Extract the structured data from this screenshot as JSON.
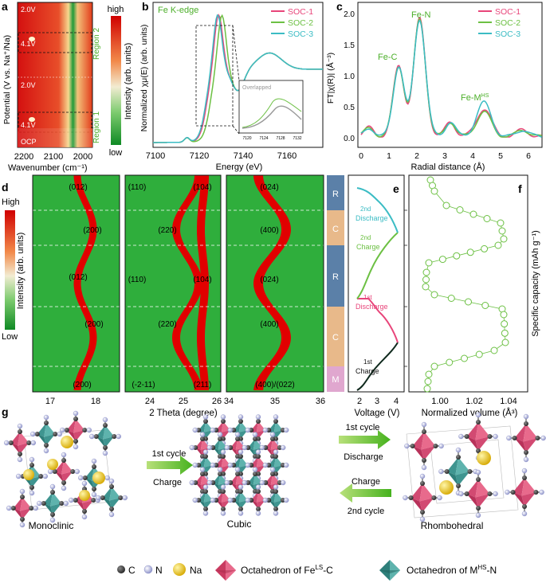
{
  "panel_a": {
    "letter": "a",
    "legend_high": "high",
    "legend_low": "low",
    "legend_title": "Intensity (arb. units)",
    "ylabel": "Potential (V vs. Na⁺/Na)",
    "xlabel": "Wavenumber (cm⁻¹)",
    "xticks": [
      "2200",
      "2100",
      "2000"
    ],
    "labels": [
      "2.0V",
      "4.1V",
      "2.0V",
      "4.1V",
      "OCP"
    ],
    "region2": "Region 2",
    "region1": "Region 1"
  },
  "panel_b": {
    "letter": "b",
    "title": "Fe K-edge",
    "ylabel": "Normalized χμ(E) (arb. units)",
    "xlabel": "Energy (eV)",
    "xticks": [
      "7100",
      "7120",
      "7140",
      "7160"
    ],
    "inset_label": "Overlapped",
    "inset_ticks": [
      "7120",
      "7124",
      "7128",
      "7132"
    ],
    "legend": [
      "SOC-1",
      "SOC-2",
      "SOC-3"
    ]
  },
  "panel_c": {
    "letter": "c",
    "ylabel": "FT|χ(R)| (Å⁻³)",
    "xlabel": "Radial distance (Å)",
    "xticks": [
      "0",
      "1",
      "2",
      "3",
      "4",
      "5",
      "6"
    ],
    "yticks": [
      "0.0",
      "0.5",
      "1.0",
      "1.5",
      "2.0"
    ],
    "peak_fe_c": "Fe-C",
    "peak_fe_n": "Fe-N",
    "peak_fe_m": "Fe-M",
    "peak_fe_m_sup": "HS",
    "legend": [
      "SOC-1",
      "SOC-2",
      "SOC-3"
    ]
  },
  "panel_d": {
    "letter": "d",
    "legend_high": "High",
    "legend_low": "Low",
    "legend_title": "Intensity (arb. units)",
    "xlabel": "2 Theta (degree)",
    "sub1_ticks": [
      "17",
      "18"
    ],
    "sub2_ticks": [
      "24",
      "25",
      "26"
    ],
    "sub3_ticks": [
      "34",
      "35",
      "36"
    ],
    "sub1_labels": [
      "(012)",
      "(200)",
      "(012)",
      "(200)",
      "(200)"
    ],
    "sub2_labels": [
      "(110)",
      "(104)",
      "(220)",
      "(110)",
      "(104)",
      "(220)",
      "(-2-11)",
      "(211)"
    ],
    "sub3_labels": [
      "(024)",
      "(400)",
      "(024)",
      "(400)",
      "(400)/(022)"
    ],
    "phases": [
      "R",
      "C",
      "R",
      "C",
      "M"
    ],
    "colors": {
      "R": "#5b80a8",
      "C": "#e8b98a",
      "M": "#e0a7cf",
      "red": "#e10000",
      "green": "#2fae3c"
    }
  },
  "panel_e": {
    "letter": "e",
    "xlabel": "Voltage (V)",
    "xticks": [
      "2",
      "3",
      "4"
    ],
    "labels": [
      "2nd",
      "Discharge",
      "2nd",
      "Charge",
      "1st",
      "Discharge",
      "1st",
      "Charge"
    ]
  },
  "panel_f": {
    "letter": "f",
    "xlabel": "Normalized volume (Å³)",
    "xticks": [
      "1.00",
      "1.02",
      "1.04"
    ],
    "ylabel": "Specific capacity (mAh g⁻¹)"
  },
  "panel_g": {
    "letter": "g",
    "structures": [
      "Monoclinic",
      "Cubic",
      "Rhombohedral"
    ],
    "arrow1_top": "1st cycle",
    "arrow1_bottom": "Charge",
    "arrow2_top": "1st cycle",
    "arrow2_bottom": "Discharge",
    "arrow3_top": "Charge",
    "arrow3_bottom": "2nd cycle",
    "legend": {
      "c": "C",
      "n": "N",
      "na": "Na",
      "fe_oct": "Octahedron of Fe",
      "fe_sup": "LS",
      "fe_tail": "-C",
      "m_oct": "Octahedron of M",
      "m_sup": "HS",
      "m_tail": "-N"
    }
  }
}
